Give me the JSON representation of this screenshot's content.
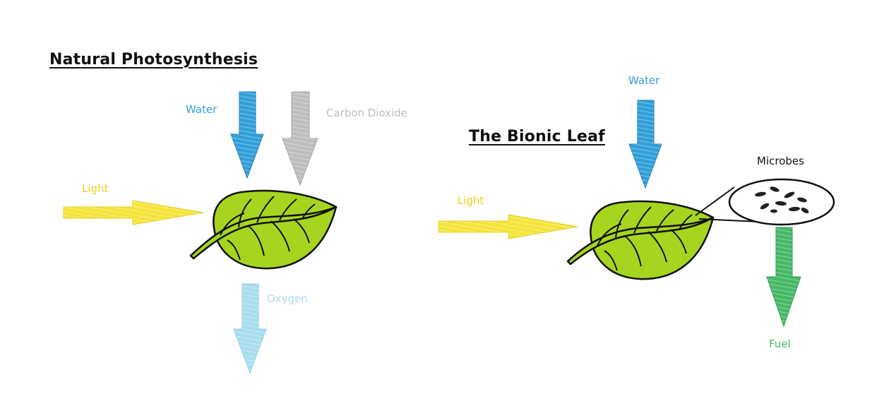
{
  "left_panel": {
    "title": "Natural Photosynthesis",
    "labels": {
      "water": "Water",
      "carbon_dioxide": "Carbon Dioxide",
      "light": "Light",
      "oxygen": "Oxygen"
    }
  },
  "right_panel": {
    "title": "The Bionic Leaf",
    "labels": {
      "water": "Water",
      "light": "Light",
      "microbes": "Microbes",
      "fuel": "Fuel"
    }
  },
  "colors": {
    "water": "#2f9fd8",
    "carbon_dioxide": "#bdbdbd",
    "light": "#f5e43a",
    "oxygen": "#a9dcef",
    "fuel": "#45b865",
    "leaf": "#a6d51f",
    "outline": "#111111"
  }
}
